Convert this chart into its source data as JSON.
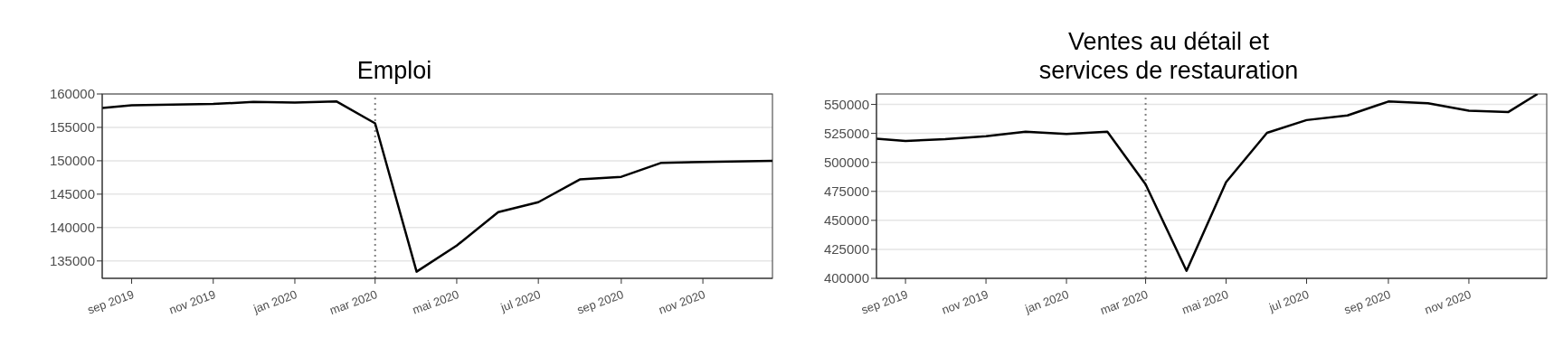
{
  "chart_data": [
    {
      "type": "line",
      "title": "Emploi",
      "x": [
        "2019-08-10",
        "2019-09-01",
        "2019-11-01",
        "2019-12-01",
        "2020-01-01",
        "2020-02-01",
        "2020-03-01",
        "2020-04-01",
        "2020-05-01",
        "2020-06-01",
        "2020-07-01",
        "2020-08-01",
        "2020-09-01",
        "2020-10-01",
        "2020-12-23"
      ],
      "series": [
        {
          "color": "#000000",
          "values": [
            157900,
            158300,
            158500,
            158800,
            158700,
            158900,
            155600,
            133400,
            137300,
            142300,
            143800,
            147200,
            147600,
            149700,
            150000
          ]
        }
      ],
      "xlim": [
        "2019-08-10",
        "2020-12-23"
      ],
      "ylim": [
        132400,
        160000
      ],
      "xticks": [
        {
          "value": "2019-09-01",
          "label": "sep 2019"
        },
        {
          "value": "2019-11-01",
          "label": "nov 2019"
        },
        {
          "value": "2020-01-01",
          "label": "jan 2020"
        },
        {
          "value": "2020-03-01",
          "label": "mar 2020"
        },
        {
          "value": "2020-05-01",
          "label": "mai 2020"
        },
        {
          "value": "2020-07-01",
          "label": "jul 2020"
        },
        {
          "value": "2020-09-01",
          "label": "sep 2020"
        },
        {
          "value": "2020-11-01",
          "label": "nov 2020"
        }
      ],
      "yticks": [
        135000,
        140000,
        145000,
        150000,
        155000,
        160000
      ],
      "ref_lines": [
        {
          "axis": "x",
          "value": "2020-03-01",
          "color": "#808080",
          "line_style": "dotted"
        }
      ],
      "grid": "y",
      "legend": false,
      "marker": "none",
      "line_style": "solid"
    },
    {
      "type": "line",
      "title": "Ventes au détail et\nservices de restauration",
      "x": [
        "2019-08-10",
        "2019-09-01",
        "2019-10-01",
        "2019-11-01",
        "2019-12-01",
        "2020-01-01",
        "2020-02-01",
        "2020-03-01",
        "2020-04-01",
        "2020-05-01",
        "2020-06-01",
        "2020-07-01",
        "2020-08-01",
        "2020-09-01",
        "2020-10-01",
        "2020-11-01",
        "2020-12-01",
        "2020-12-23"
      ],
      "series": [
        {
          "color": "#000000",
          "values": [
            520500,
            518500,
            520000,
            522500,
            526500,
            524500,
            526500,
            481000,
            406500,
            483000,
            525500,
            536500,
            540500,
            552500,
            551000,
            544500,
            543500,
            559000
          ]
        }
      ],
      "xlim": [
        "2019-08-10",
        "2020-12-30"
      ],
      "ylim": [
        400000,
        559000
      ],
      "xticks": [
        {
          "value": "2019-09-01",
          "label": "sep 2019"
        },
        {
          "value": "2019-11-01",
          "label": "nov 2019"
        },
        {
          "value": "2020-01-01",
          "label": "jan 2020"
        },
        {
          "value": "2020-03-01",
          "label": "mar 2020"
        },
        {
          "value": "2020-05-01",
          "label": "mai 2020"
        },
        {
          "value": "2020-07-01",
          "label": "jul 2020"
        },
        {
          "value": "2020-09-01",
          "label": "sep 2020"
        },
        {
          "value": "2020-11-01",
          "label": "nov 2020"
        }
      ],
      "yticks": [
        400000,
        425000,
        450000,
        475000,
        500000,
        525000,
        550000
      ],
      "ref_lines": [
        {
          "axis": "x",
          "value": "2020-03-01",
          "color": "#808080",
          "line_style": "dotted"
        }
      ],
      "grid": "y",
      "legend": false,
      "marker": "none",
      "line_style": "solid"
    }
  ]
}
